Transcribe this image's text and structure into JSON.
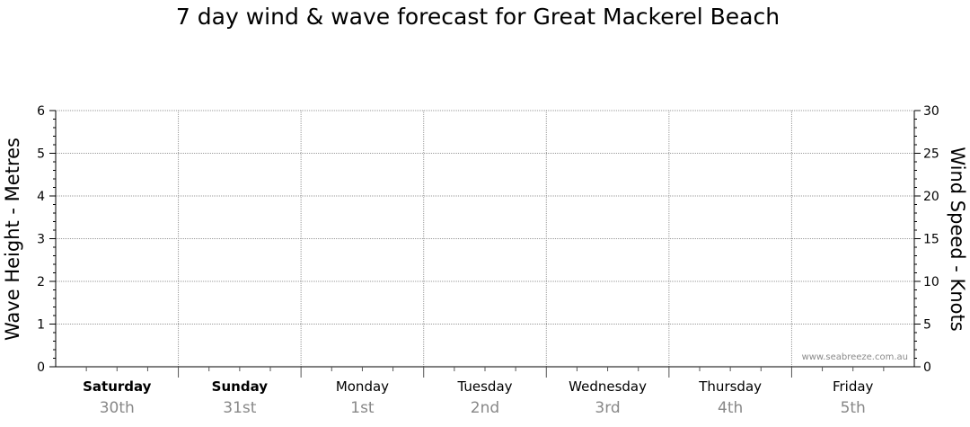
{
  "title": "7 day wind & wave forecast for Great Mackerel Beach",
  "watermark": "www.seabreeze.com.au",
  "colors": {
    "grid": "#9a9a9a",
    "axis": "#000000",
    "date_text": "#888888",
    "watermark": "#8a8a8a"
  },
  "chart_data": {
    "type": "line",
    "title": "7 day wind & wave forecast for Great Mackerel Beach",
    "grid": true,
    "left_axis": {
      "label": "Wave Height - Metres",
      "range": [
        0,
        6
      ],
      "ticks": [
        "0",
        "1",
        "2",
        "3",
        "4",
        "5",
        "6"
      ]
    },
    "right_axis": {
      "label": "Wind Speed - Knots",
      "range": [
        0,
        30
      ],
      "ticks": [
        "0",
        "5",
        "10",
        "15",
        "20",
        "25",
        "30"
      ]
    },
    "days": [
      {
        "name": "Saturday",
        "date": "30th",
        "bold": true
      },
      {
        "name": "Sunday",
        "date": "31st",
        "bold": true
      },
      {
        "name": "Monday",
        "date": "1st",
        "bold": false
      },
      {
        "name": "Tuesday",
        "date": "2nd",
        "bold": false
      },
      {
        "name": "Wednesday",
        "date": "3rd",
        "bold": false
      },
      {
        "name": "Thursday",
        "date": "4th",
        "bold": false
      },
      {
        "name": "Friday",
        "date": "5th",
        "bold": false
      }
    ],
    "series": []
  }
}
